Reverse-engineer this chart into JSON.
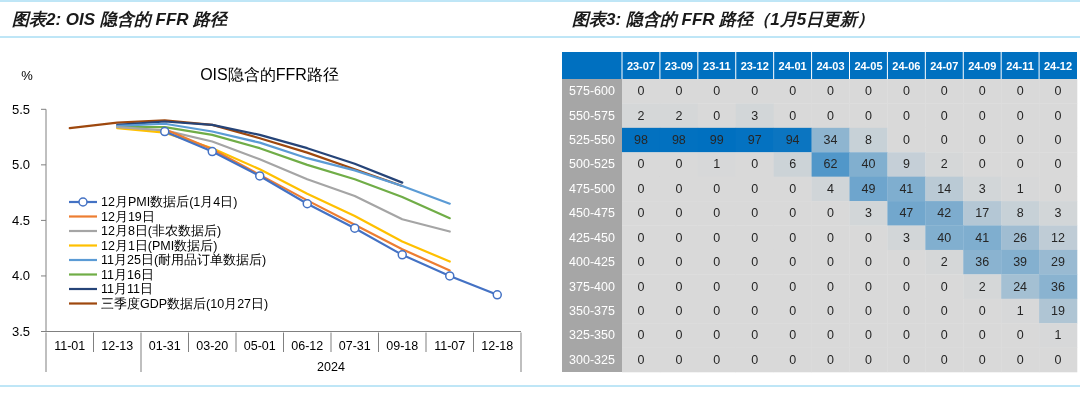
{
  "chart_data": [
    {
      "type": "line",
      "title": "图表2: OIS 隐含的 FFR 路径",
      "subtitle": "OIS隐含的FFR路径",
      "ylabel": "%",
      "xlabel": "2024",
      "categories": [
        "11-01",
        "12-13",
        "01-31",
        "03-20",
        "05-01",
        "06-12",
        "07-31",
        "09-18",
        "11-07",
        "12-18"
      ],
      "ylim": [
        3.5,
        5.5
      ],
      "yticks": [
        3.5,
        {
          "value": 4,
          "label": "4.0"
        },
        4.5,
        {
          "value": 5,
          "label": "5.0"
        },
        5.5
      ],
      "legend": "bottom left",
      "line_style": "solid",
      "series": [
        {
          "name": "12月PMI数据后(1月4日)",
          "color": "#4472c4",
          "marker": "circle",
          "values": [
            null,
            null,
            5.3,
            5.12,
            4.9,
            4.65,
            4.43,
            4.19,
            4.0,
            3.83
          ]
        },
        {
          "name": "12月19日",
          "color": "#ed7d31",
          "values": [
            null,
            null,
            5.32,
            5.14,
            4.91,
            4.68,
            4.46,
            4.24,
            4.05,
            null
          ]
        },
        {
          "name": "12月8日(非农数据后)",
          "color": "#a5a5a5",
          "values": [
            null,
            5.34,
            5.31,
            5.21,
            5.05,
            4.87,
            4.72,
            4.51,
            4.4,
            null
          ]
        },
        {
          "name": "12月1日(PMI数据后)",
          "color": "#ffc000",
          "values": [
            null,
            5.33,
            5.29,
            5.15,
            4.96,
            4.74,
            4.54,
            4.31,
            4.13,
            null
          ]
        },
        {
          "name": "11月25日(耐用品订单数据后)",
          "color": "#5b9bd5",
          "values": [
            null,
            5.35,
            5.37,
            5.3,
            5.2,
            5.06,
            4.95,
            4.81,
            4.65,
            null
          ]
        },
        {
          "name": "11月16日",
          "color": "#70ad47",
          "values": [
            null,
            5.34,
            5.34,
            5.27,
            5.15,
            5.0,
            4.87,
            4.71,
            4.52,
            null
          ]
        },
        {
          "name": "11月11日",
          "color": "#264478",
          "values": [
            null,
            5.36,
            5.39,
            5.36,
            5.27,
            5.15,
            5.01,
            4.84,
            null,
            null
          ]
        },
        {
          "name": "三季度GDP数据后(10月27日)",
          "color": "#9e480e",
          "values": [
            5.33,
            5.38,
            5.4,
            5.36,
            5.24,
            5.11,
            4.96,
            4.81,
            null,
            null
          ]
        }
      ]
    },
    {
      "type": "heatmap",
      "title": "图表3: 隐含的 FFR 路径（1月5日更新）",
      "categories": [
        "23-07",
        "23-09",
        "23-11",
        "23-12",
        "24-01",
        "24-03",
        "24-05",
        "24-06",
        "24-07",
        "24-09",
        "24-11",
        "24-12"
      ],
      "y_categories": [
        "575-600",
        "550-575",
        "525-550",
        "500-525",
        "475-500",
        "450-475",
        "425-450",
        "400-425",
        "375-400",
        "350-375",
        "325-350",
        "300-325"
      ],
      "colors": [
        "#d9d9d9",
        "#0070c0"
      ],
      "data_labels": true,
      "cells": [
        [
          0,
          0,
          0,
          0,
          0,
          0,
          0,
          0,
          0,
          0,
          0,
          0
        ],
        [
          2,
          2,
          0,
          3,
          0,
          0,
          0,
          0,
          0,
          0,
          0,
          0
        ],
        [
          98,
          98,
          99,
          97,
          94,
          34,
          8,
          0,
          0,
          0,
          0,
          0
        ],
        [
          0,
          0,
          1,
          0,
          6,
          62,
          40,
          9,
          2,
          0,
          0,
          0
        ],
        [
          0,
          0,
          0,
          0,
          0,
          4,
          49,
          41,
          14,
          3,
          1,
          0
        ],
        [
          0,
          0,
          0,
          0,
          0,
          0,
          3,
          47,
          42,
          17,
          8,
          3
        ],
        [
          0,
          0,
          0,
          0,
          0,
          0,
          0,
          3,
          40,
          41,
          26,
          12
        ],
        [
          0,
          0,
          0,
          0,
          0,
          0,
          0,
          0,
          2,
          36,
          39,
          29
        ],
        [
          0,
          0,
          0,
          0,
          0,
          0,
          0,
          0,
          0,
          2,
          24,
          36
        ],
        [
          0,
          0,
          0,
          0,
          0,
          0,
          0,
          0,
          0,
          0,
          1,
          19
        ],
        [
          0,
          0,
          0,
          0,
          0,
          0,
          0,
          0,
          0,
          0,
          0,
          1
        ],
        [
          0,
          0,
          0,
          0,
          0,
          0,
          0,
          0,
          0,
          0,
          0,
          0
        ]
      ]
    }
  ]
}
